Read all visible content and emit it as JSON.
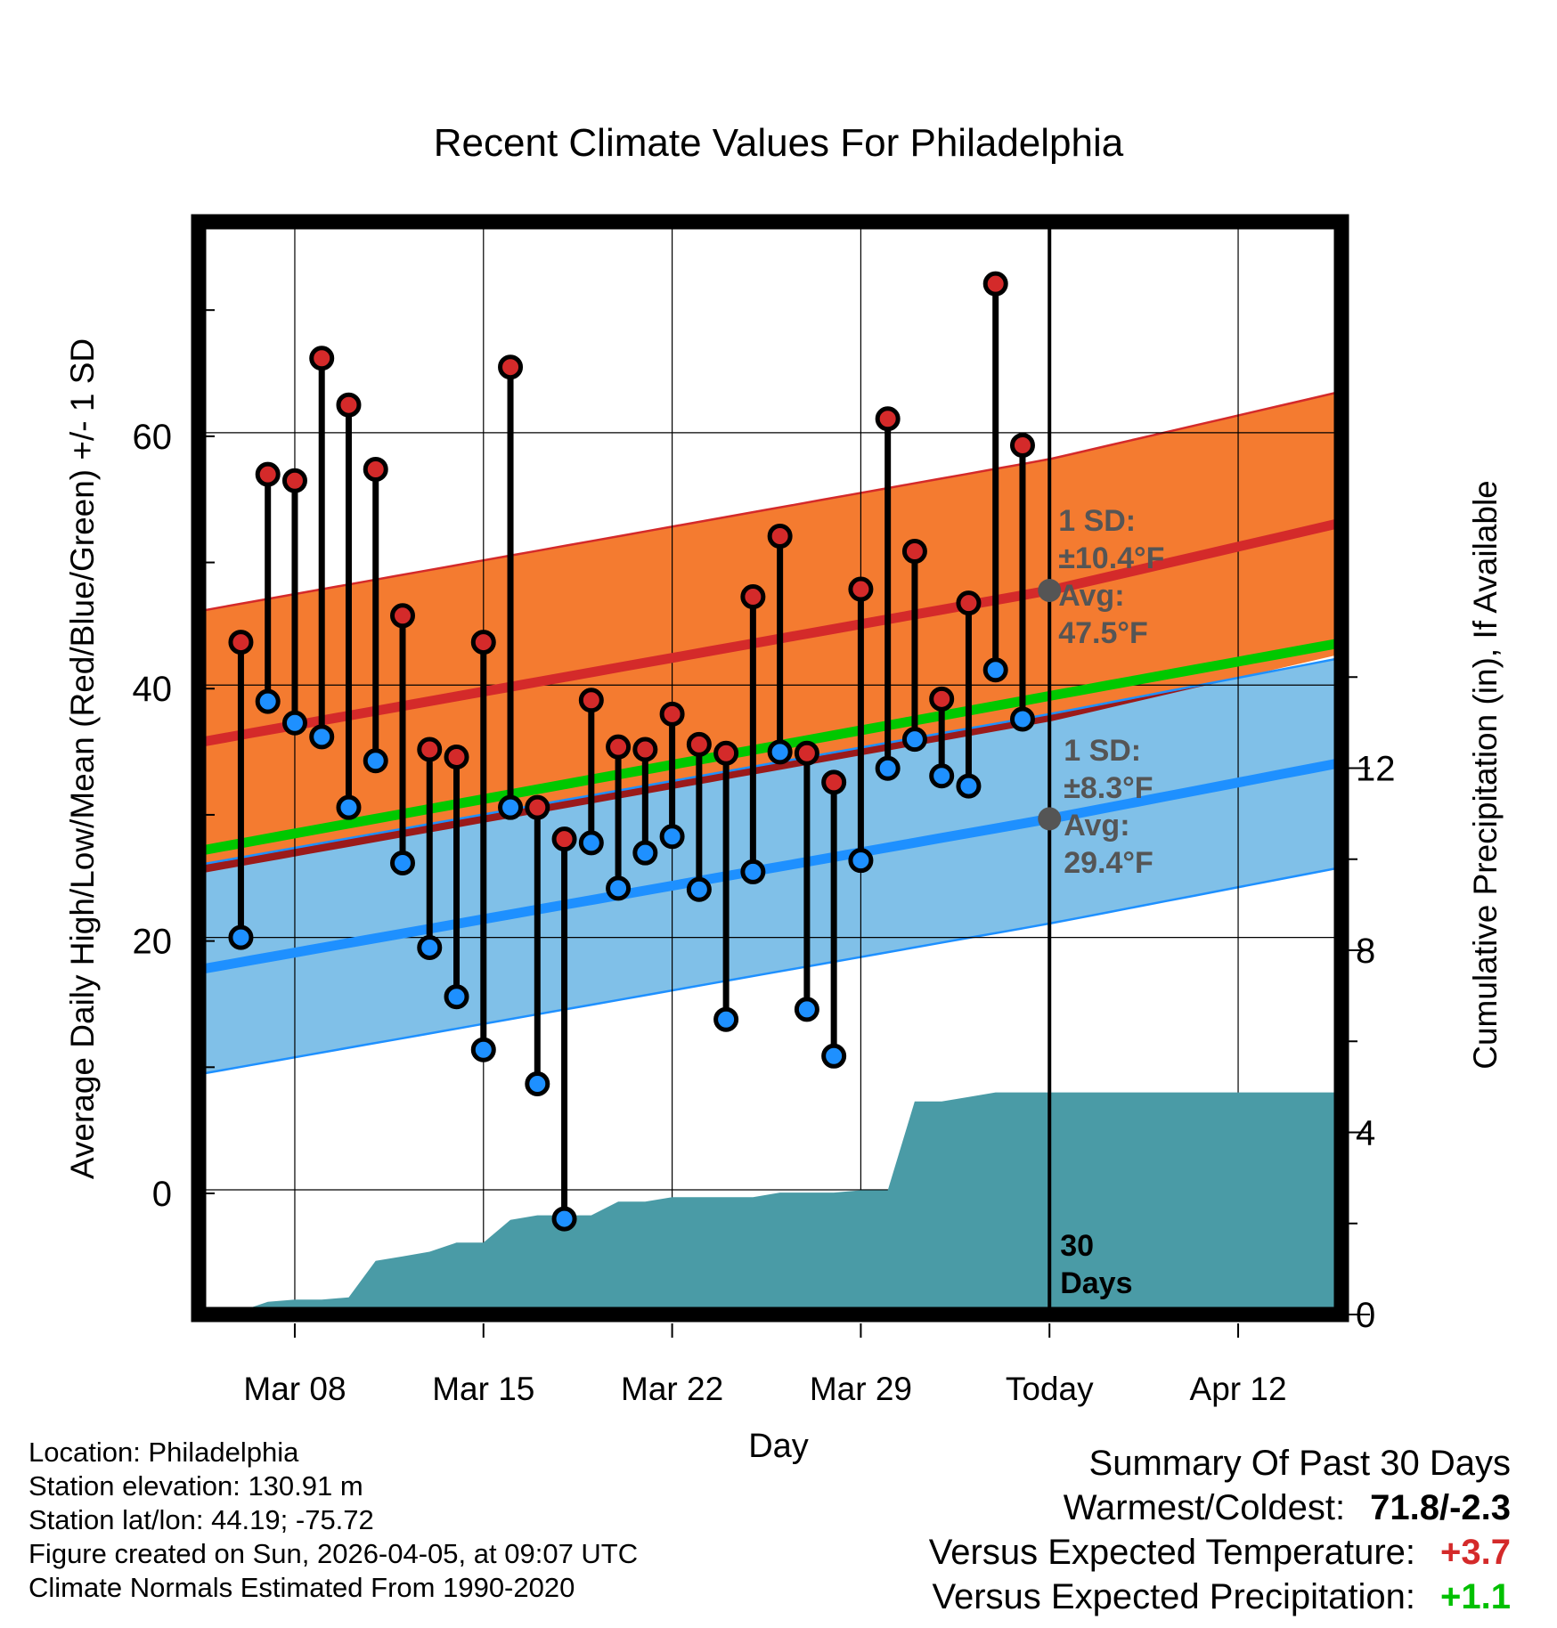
{
  "chart_data": {
    "type": "range-line",
    "title": "Recent Climate Values For Philadelphia",
    "xlabel": "Day",
    "ylabel_left": "Average Daily High/Low/Mean (Red/Blue/Green) +/- 1 SD",
    "ylabel_right": "Cumulative Precipitation (in), If Available",
    "x_ticks": [
      {
        "label": "Mar 08",
        "day": 3
      },
      {
        "label": "Mar 15",
        "day": 10
      },
      {
        "label": "Mar 22",
        "day": 17
      },
      {
        "label": "Mar 29",
        "day": 24
      },
      {
        "label": "Today",
        "day": 31
      },
      {
        "label": "Apr 12",
        "day": 38
      }
    ],
    "xlim": [
      -0.7,
      41.7
    ],
    "ylim_left": [
      -9.6,
      77
    ],
    "y_ticks_left": [
      0,
      20,
      40,
      60
    ],
    "ylim_right": [
      0,
      24
    ],
    "y_ticks_right": [
      0,
      4,
      8,
      12
    ],
    "today_day": 31,
    "daily_high": [
      43.4,
      56.7,
      56.2,
      65.9,
      62.2,
      57.1,
      45.5,
      34.9,
      34.3,
      43.4,
      65.2,
      30.3,
      27.8,
      38.8,
      35.1,
      34.9,
      37.7,
      35.3,
      34.6,
      47.0,
      51.8,
      34.6,
      32.3,
      47.6,
      61.1,
      50.6,
      38.9,
      46.5,
      71.8,
      59.0
    ],
    "daily_low": [
      20.0,
      38.7,
      37.0,
      35.9,
      30.3,
      34.0,
      25.9,
      19.2,
      15.3,
      11.1,
      30.3,
      8.4,
      -2.3,
      27.5,
      23.9,
      26.7,
      28.0,
      23.8,
      13.5,
      25.2,
      34.7,
      14.3,
      10.6,
      26.1,
      33.4,
      35.7,
      32.8,
      32.0,
      41.2,
      37.3
    ],
    "normal_high": {
      "start": 35.4,
      "today": 47.5,
      "end": 52.8
    },
    "normal_high_sd": 10.4,
    "normal_low": {
      "start": 17.4,
      "today": 29.4,
      "end": 33.8
    },
    "normal_low_sd": 8.3,
    "normal_mean": {
      "start": 26.8,
      "end": 43.3
    },
    "cumulative_precip": [
      0.0,
      0.0,
      0.2,
      0.25,
      0.25,
      0.3,
      1.1,
      1.2,
      1.3,
      1.5,
      1.5,
      2.0,
      2.1,
      2.1,
      2.1,
      2.4,
      2.4,
      2.5,
      2.5,
      2.5,
      2.5,
      2.6,
      2.6,
      2.6,
      2.65,
      2.65,
      4.6,
      4.6,
      4.7,
      4.8,
      4.8
    ],
    "precip_end_value": 4.8,
    "high_annotation": [
      "1 SD:",
      "±10.4°F",
      "Avg:",
      "47.5°F"
    ],
    "low_annotation": [
      "1 SD:",
      "±8.3°F",
      "Avg:",
      "29.4°F"
    ],
    "days_annotation": [
      "30",
      "Days"
    ],
    "colors": {
      "high_band": "#f47b30",
      "low_band": "#80c0e8",
      "overlap_band": "#9b1a1a",
      "high_line": "#d42a2a",
      "low_line": "#1e90ff",
      "mean_line": "#00c800",
      "precip": "#4a9ba6",
      "high_dot": "#d42a2a",
      "low_dot": "#1e90ff",
      "annotation_text": "#555555"
    }
  },
  "info": {
    "location": "Location: Philadelphia",
    "elevation": "Station elevation: 130.91 m",
    "latlon": "Station lat/lon: 44.19; -75.72",
    "created": "Figure created on Sun, 2026-04-05, at 09:07 UTC",
    "normals": "Climate Normals Estimated From 1990-2020"
  },
  "summary": {
    "title": "Summary Of Past 30 Days",
    "warm_label": "Warmest/Coldest:",
    "warm_value": "71.8/-2.3",
    "temp_label": "Versus Expected Temperature:",
    "temp_value": "+3.7",
    "temp_color": "#d42a2a",
    "precip_label": "Versus Expected Precipitation:",
    "precip_value": "+1.1",
    "precip_color": "#00c000"
  }
}
